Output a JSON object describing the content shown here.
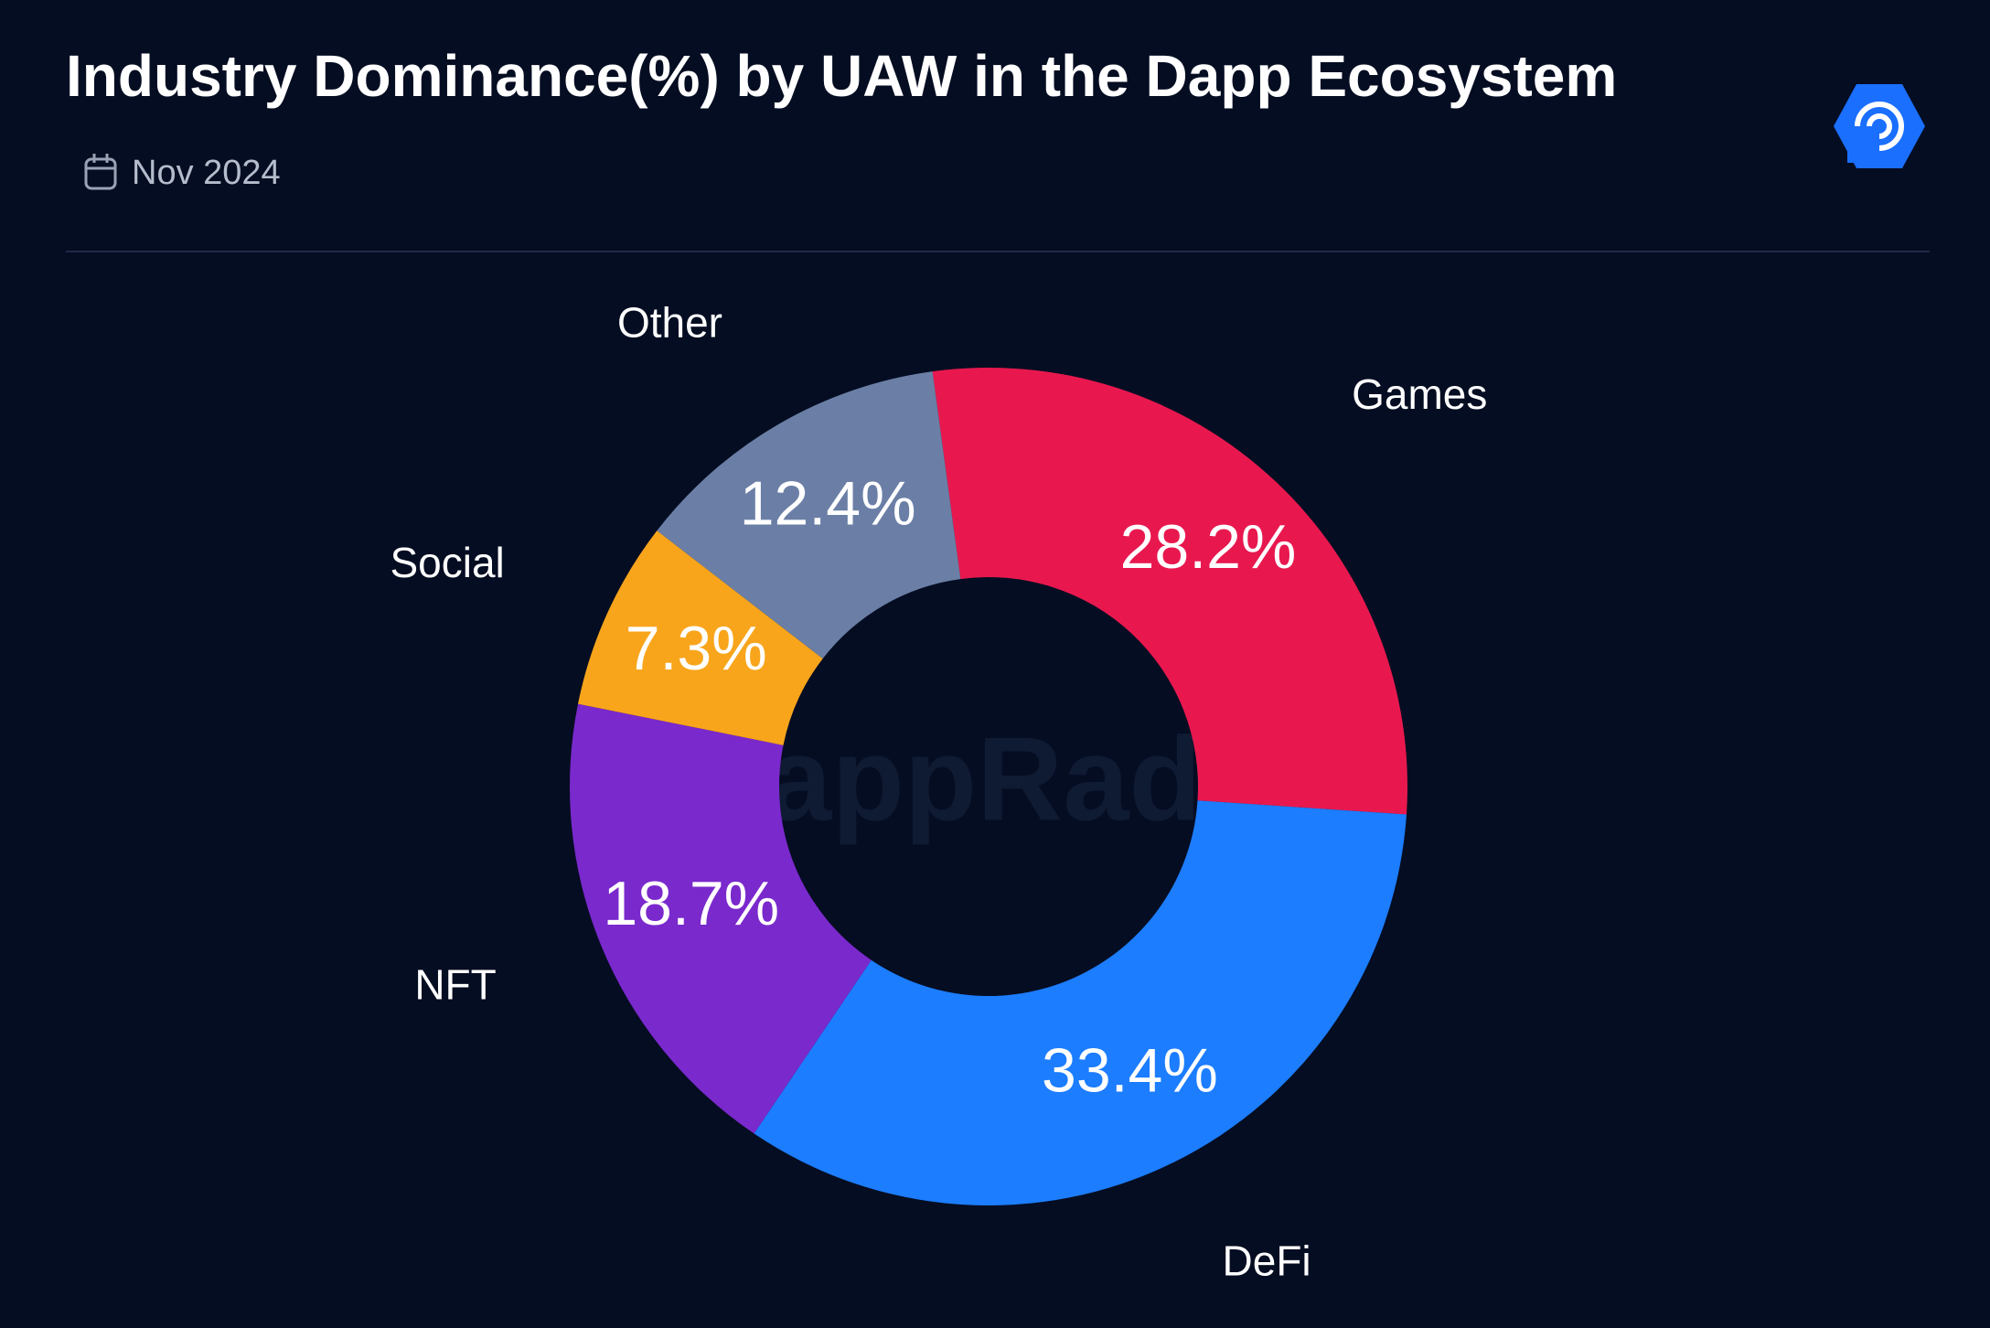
{
  "chart_data": {
    "type": "donut",
    "title": "Industry Dominance(%) by UAW in the Dapp Ecosystem",
    "subtitle": "Nov 2024",
    "watermark": "DappRadar",
    "categories": [
      "Games",
      "DeFi",
      "NFT",
      "Social",
      "Other"
    ],
    "values": [
      28.2,
      33.4,
      18.7,
      7.3,
      12.4
    ],
    "value_labels": [
      "28.2%",
      "33.4%",
      "18.7%",
      "7.3%",
      "12.4%"
    ],
    "colors": [
      "#e8184f",
      "#1c7dff",
      "#7a29cc",
      "#f8a51c",
      "#6b7fa6"
    ]
  }
}
